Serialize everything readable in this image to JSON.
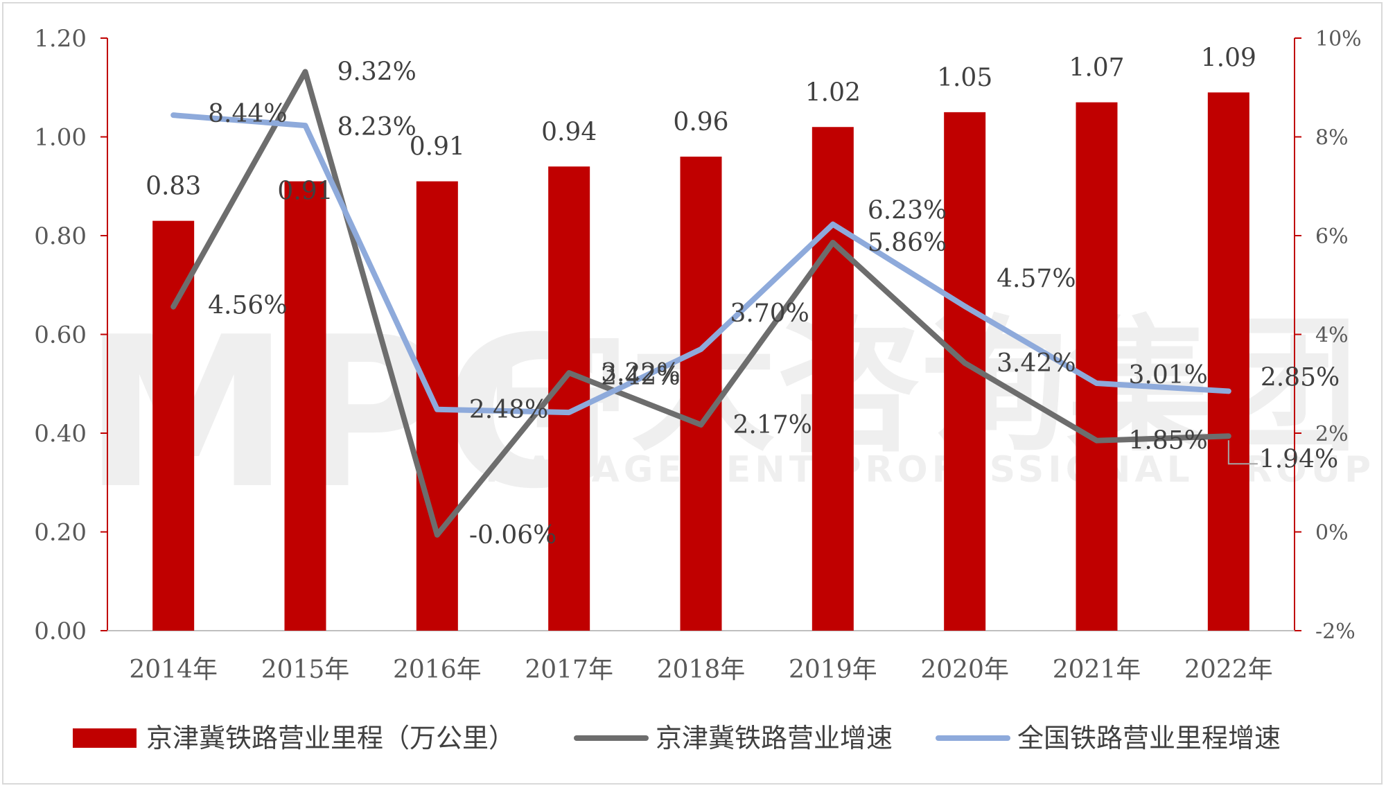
{
  "chart_data": {
    "type": "bar+line",
    "categories": [
      "2014年",
      "2015年",
      "2016年",
      "2017年",
      "2018年",
      "2019年",
      "2020年",
      "2021年",
      "2022年"
    ],
    "series": [
      {
        "name": "京津冀铁路营业里程（万公里）",
        "kind": "bar",
        "axis": "left",
        "color": "#c00000",
        "values": [
          0.83,
          0.91,
          0.91,
          0.94,
          0.96,
          1.02,
          1.05,
          1.07,
          1.09
        ],
        "labels": [
          "0.83",
          "0.91",
          "0.91",
          "0.94",
          "0.96",
          "1.02",
          "1.05",
          "1.07",
          "1.09"
        ]
      },
      {
        "name": "京津冀铁路营业增速",
        "kind": "line",
        "axis": "right",
        "color": "#6d6d6d",
        "values": [
          4.56,
          9.32,
          -0.06,
          3.22,
          2.17,
          5.86,
          3.42,
          1.85,
          1.94
        ],
        "labels": [
          "4.56%",
          "9.32%",
          "-0.06%",
          "3.22%",
          "2.17%",
          "5.86%",
          "3.42%",
          "1.85%",
          "1.94%"
        ]
      },
      {
        "name": "全国铁路营业里程增速",
        "kind": "line",
        "axis": "right",
        "color": "#8eaadb",
        "values": [
          8.44,
          8.23,
          2.48,
          2.42,
          3.7,
          6.23,
          4.57,
          3.01,
          2.85
        ],
        "labels": [
          "8.44%",
          "8.23%",
          "2.48%",
          "2.42%",
          "3.70%",
          "6.23%",
          "4.57%",
          "3.01%",
          "2.85%"
        ]
      }
    ],
    "left_axis": {
      "min": 0,
      "max": 1.2,
      "ticks": [
        "0.00",
        "0.20",
        "0.40",
        "0.60",
        "0.80",
        "1.00",
        "1.20"
      ]
    },
    "right_axis": {
      "min": -2,
      "max": 10,
      "ticks": [
        "-2%",
        "0%",
        "2%",
        "4%",
        "6%",
        "8%",
        "10%"
      ]
    },
    "axis_color": "#c00000",
    "legend_position": "bottom",
    "grid": false
  },
  "watermark": {
    "logo_text": "MPG",
    "cn_text": "中大咨询集团",
    "en_text": "MANAGEMENT PROFESSIONAL GROUP"
  }
}
